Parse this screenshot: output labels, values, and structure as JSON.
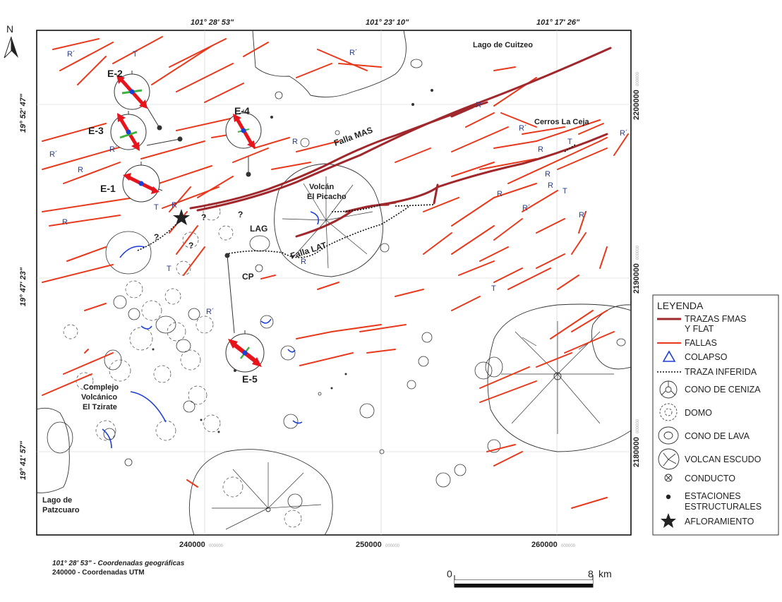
{
  "map": {
    "north_label": "N",
    "lon_labels": [
      "101° 28' 53\"",
      "101° 23' 10\"",
      "101° 17' 26\""
    ],
    "lat_labels": [
      "19° 52' 47\"",
      "19° 47' 23\"",
      "19° 41' 57\""
    ],
    "utm_x_labels": [
      "240000",
      "250000",
      "260000"
    ],
    "utm_y_labels": [
      "2200000",
      "2190000",
      "2180000"
    ],
    "utm_suffix": "000000",
    "place_labels": {
      "lago_cuitzeo": "Lago de Cuitzeo",
      "lago_patzcuaro_1": "Lago de",
      "lago_patzcuaro_2": "Patzcuaro",
      "cerros_la_ceja": "Cerros La Ceja",
      "volcan_1": "Volcán",
      "volcan_2": "El Picacho",
      "complejo_1": "Complejo",
      "complejo_2": "Volcánico",
      "complejo_3": "El Tzirate",
      "lag": "LAG",
      "cp": "CP"
    },
    "fault_labels": {
      "mas": "Falla MAS",
      "lat": "Falla LAT"
    },
    "stations": [
      "E-1",
      "E-2",
      "E-3",
      "E-4",
      "E-5"
    ],
    "symbols": {
      "r_prime": "R´",
      "r": "R",
      "t": "T",
      "q": "?"
    }
  },
  "legend": {
    "title": "LEYENDA",
    "items": [
      {
        "l1": "TRAZAS FMAS",
        "l2": "Y FLAT",
        "color": "#a0282c"
      },
      {
        "l1": "FALLAS",
        "color": "#e8391c"
      },
      {
        "l1": "COLAPSO",
        "color": "#1a3fd6"
      },
      {
        "l1": "TRAZA INFERIDA"
      },
      {
        "l1": "CONO DE CENIZA"
      },
      {
        "l1": "DOMO"
      },
      {
        "l1": "CONO DE LAVA"
      },
      {
        "l1": "VOLCAN ESCUDO"
      },
      {
        "l1": "CONDUCTO"
      },
      {
        "l1": "ESTACIONES",
        "l2": "ESTRUCTURALES"
      },
      {
        "l1": "AFLORAMIENTO"
      }
    ]
  },
  "footer": {
    "geo_value": "101° 28' 53\"",
    "geo_desc": "  -  Coordenadas geográficas",
    "utm_value": "240000",
    "utm_desc": "  -  Coordenadas UTM"
  },
  "scale": {
    "start": "0",
    "end": "8",
    "unit": "km"
  },
  "colors": {
    "trazas": "#a0282c",
    "fallas": "#e8391c",
    "colapso": "#1a3fd6",
    "r_label": "#2a3d8f",
    "stress_red": "#e8141c",
    "stress_green": "#3db33d"
  }
}
